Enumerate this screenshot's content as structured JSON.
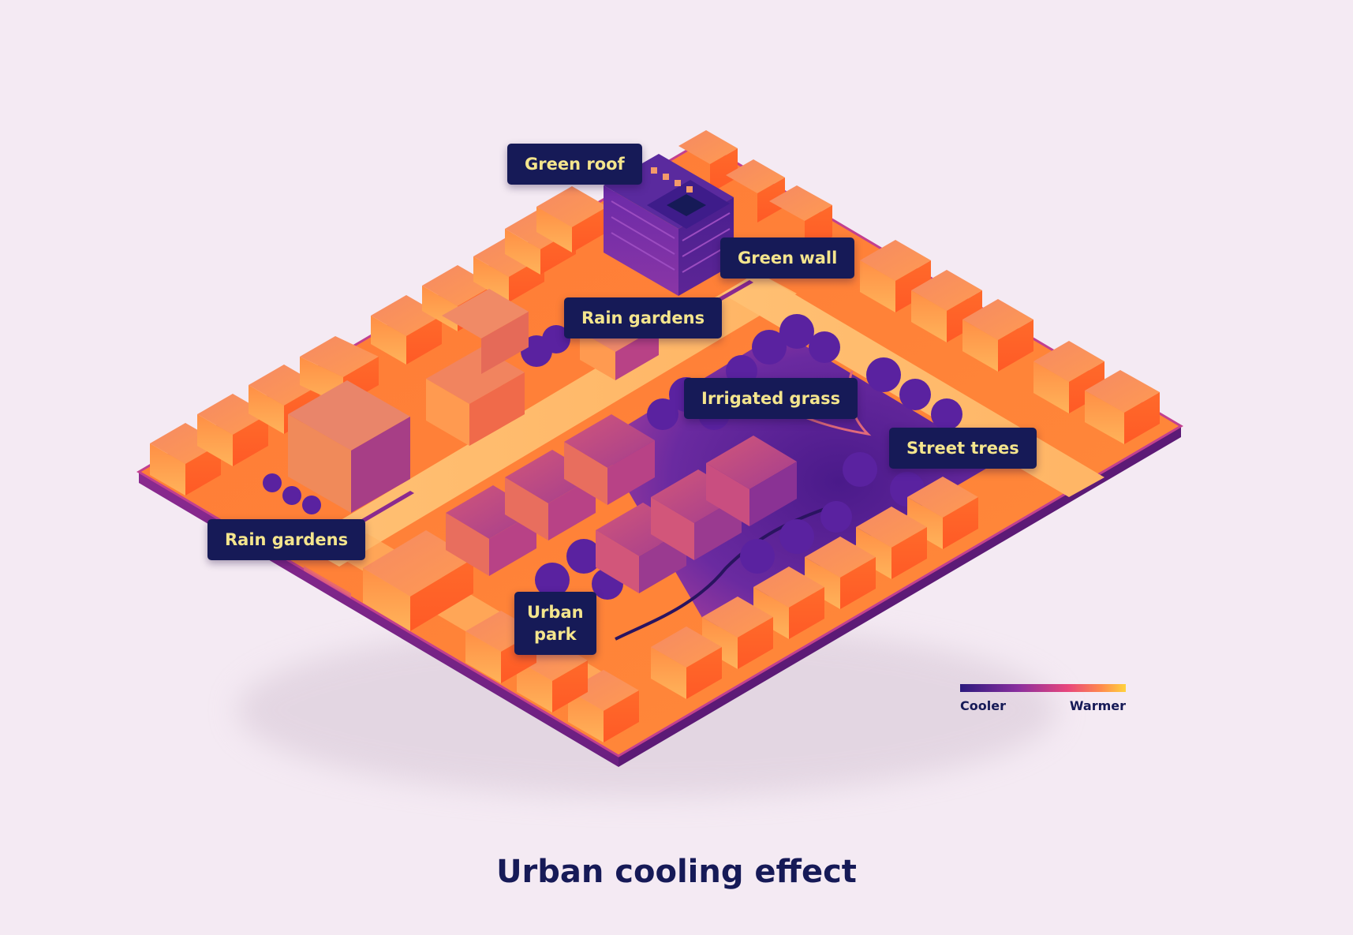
{
  "title": "Urban cooling effect",
  "labels": {
    "green_roof": "Green roof",
    "green_wall": "Green wall",
    "rain_gardens_center": "Rain gardens",
    "irrigated_grass": "Irrigated grass",
    "street_trees": "Street trees",
    "rain_gardens_left": "Rain gardens",
    "urban_park_line1": "Urban",
    "urban_park_line2": "park"
  },
  "legend": {
    "cooler": "Cooler",
    "warmer": "Warmer"
  },
  "colors": {
    "background": "#f4eaf3",
    "label_bg": "#161a57",
    "label_text": "#f4e58d",
    "cool": "#2c1a7e",
    "mid": "#8a2f9e",
    "warm": "#ff6a2c",
    "hot": "#ffd23d"
  }
}
